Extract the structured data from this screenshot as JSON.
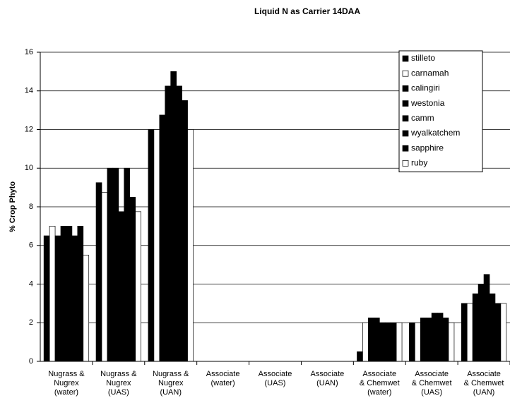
{
  "chart_data": {
    "type": "bar",
    "title": "Liquid N as Carrier 14DAA",
    "ylabel": "% Crop Phyto",
    "categories": [
      "Nugrass &\nNugrex\n(water)",
      "Nugrass &\nNugrex\n(UAS)",
      "Nugrass &\nNugrex\n(UAN)",
      "Associate\n(water)",
      "Associate\n(UAS)",
      "Associate\n(UAN)",
      "Associate\n& Chemwet\n(water)",
      "Associate\n& Chemwet\n(UAS)",
      "Associate\n& Chemwet\n(UAN)"
    ],
    "series": [
      {
        "name": "stilleto",
        "color": "#000000",
        "values": [
          6.5,
          9.25,
          12,
          0,
          0,
          0,
          0.5,
          2,
          3
        ]
      },
      {
        "name": "carnamah",
        "color": "#ffffff",
        "values": [
          7,
          8.75,
          12,
          0,
          0,
          0,
          2,
          2,
          3
        ]
      },
      {
        "name": "calingiri",
        "color": "#000000",
        "values": [
          6.5,
          10,
          12.75,
          0,
          0,
          0,
          2.25,
          2.25,
          3.5
        ]
      },
      {
        "name": "westonia",
        "color": "#000000",
        "values": [
          7,
          10,
          14.25,
          0,
          0,
          0,
          2.25,
          2.25,
          4
        ]
      },
      {
        "name": "camm",
        "color": "#000000",
        "values": [
          7,
          7.75,
          15,
          0,
          0,
          0,
          2,
          2.5,
          4.5
        ]
      },
      {
        "name": "wyalkatchem",
        "color": "#000000",
        "values": [
          6.5,
          10,
          14.25,
          0,
          0,
          0,
          2,
          2.5,
          3.5
        ]
      },
      {
        "name": "sapphire",
        "color": "#000000",
        "values": [
          7,
          8.5,
          13.5,
          0,
          0,
          0,
          2,
          2.25,
          3
        ]
      },
      {
        "name": "ruby",
        "color": "#ffffff",
        "values": [
          5.5,
          7.75,
          12,
          0,
          0,
          0,
          2,
          2,
          3
        ]
      }
    ],
    "ylim": [
      0,
      16
    ],
    "yticks": [
      0,
      2,
      4,
      6,
      8,
      10,
      12,
      14,
      16
    ],
    "grid": true,
    "legend": "top-right"
  }
}
